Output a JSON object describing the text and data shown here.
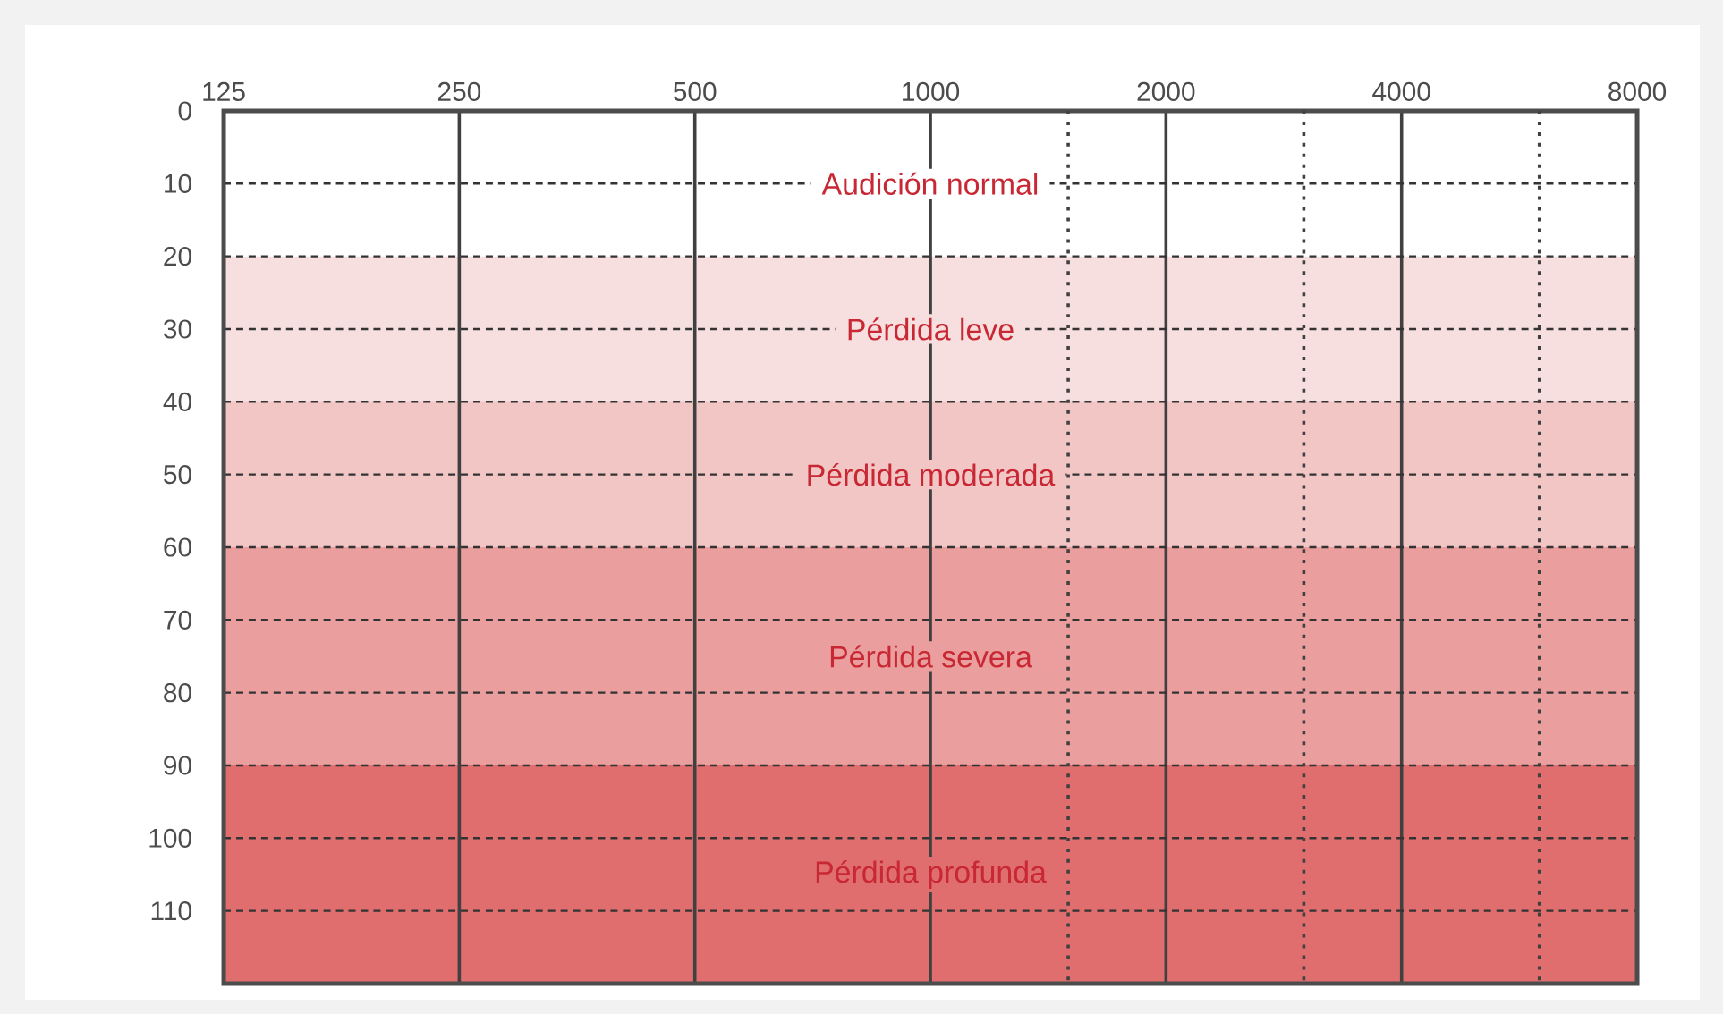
{
  "chart_data": {
    "type": "line",
    "xlim": [
      125,
      8000
    ],
    "ylim": [
      120,
      0
    ],
    "log": "x",
    "grid": true,
    "xticks": [
      125,
      250,
      500,
      1000,
      2000,
      4000,
      8000,
      {
        "value": 1500,
        "label": null
      },
      {
        "value": 3000,
        "label": null
      },
      {
        "value": 6000,
        "label": null
      }
    ],
    "yticks": [
      0,
      10,
      20,
      30,
      40,
      50,
      60,
      70,
      80,
      90,
      100,
      110
    ],
    "annotations": [
      "Audición normal"
    ],
    "bands": [
      {
        "axis": "y",
        "from": 20,
        "to": 40,
        "label": "Pérdida leve",
        "color": "#f8dfdf"
      },
      {
        "axis": "y",
        "from": 40,
        "to": 60,
        "label": "Pérdida moderada",
        "color": "#f3c6c6"
      },
      {
        "axis": "y",
        "from": 60,
        "to": 90,
        "label": "Pérdida severa",
        "color": "#eb9e9e"
      },
      {
        "axis": "y",
        "from": 90,
        "to": 120,
        "label": "Pérdida profunda",
        "color": "#e06e6e"
      }
    ]
  }
}
